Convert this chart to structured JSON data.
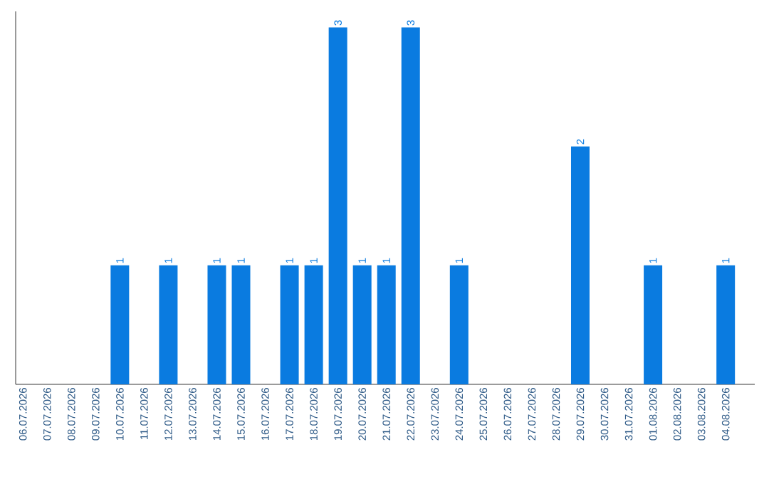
{
  "chart_data": {
    "type": "bar",
    "categories": [
      "06.07.2026",
      "07.07.2026",
      "08.07.2026",
      "09.07.2026",
      "10.07.2026",
      "11.07.2026",
      "12.07.2026",
      "13.07.2026",
      "14.07.2026",
      "15.07.2026",
      "16.07.2026",
      "17.07.2026",
      "18.07.2026",
      "19.07.2026",
      "20.07.2026",
      "21.07.2026",
      "22.07.2026",
      "23.07.2026",
      "24.07.2026",
      "25.07.2026",
      "26.07.2026",
      "27.07.2026",
      "28.07.2026",
      "29.07.2026",
      "30.07.2026",
      "31.07.2026",
      "01.08.2026",
      "02.08.2026",
      "03.08.2026",
      "04.08.2026"
    ],
    "values": [
      0,
      0,
      0,
      0,
      1,
      0,
      1,
      0,
      1,
      1,
      0,
      1,
      1,
      3,
      1,
      1,
      3,
      0,
      1,
      0,
      0,
      0,
      0,
      2,
      0,
      0,
      1,
      0,
      0,
      1
    ],
    "value_labels": [
      null,
      null,
      null,
      null,
      "1",
      null,
      "1",
      null,
      "1",
      "1",
      null,
      "1",
      "1",
      "3",
      "1",
      "1",
      "3",
      null,
      "1",
      null,
      null,
      null,
      null,
      "2",
      null,
      null,
      "1",
      null,
      null,
      "1"
    ],
    "color": "#0a7be0",
    "tick_labels": "x"
  }
}
